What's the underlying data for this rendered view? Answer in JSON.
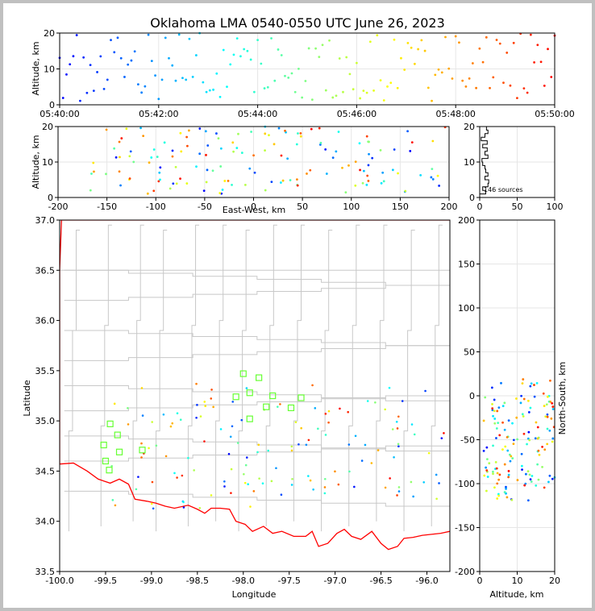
{
  "chart_data": {
    "type": "scatter",
    "title": "Oklahoma LMA 0540-0550 UTC June 26, 2023",
    "color_scale": [
      "#0000ff",
      "#00ffff",
      "#ffff00",
      "#ff0000"
    ],
    "panels": {
      "time_altitude": {
        "ylabel": "Altitude, km",
        "xlim": [
          "05:40:00",
          "05:50:00"
        ],
        "ylim": [
          0,
          20
        ],
        "xticks": [
          "05:40:00",
          "05:42:00",
          "05:44:00",
          "05:46:00",
          "05:48:00",
          "05:50:00"
        ],
        "yticks": [
          "0",
          "10",
          "20"
        ]
      },
      "ew_altitude": {
        "xlabel": "East-West, km",
        "ylabel": "Altitude, km",
        "xlim": [
          -200,
          200
        ],
        "ylim": [
          0,
          20
        ],
        "xticks": [
          "-200",
          "-150",
          "-100",
          "-50",
          "0",
          "50",
          "100",
          "150",
          "200"
        ],
        "yticks": [
          "0",
          "10",
          "20"
        ]
      },
      "histogram": {
        "xlim": [
          0,
          100
        ],
        "ylim": [
          0,
          20
        ],
        "xticks": [
          "0",
          "50",
          "100"
        ],
        "yticks": [
          "0",
          "10",
          "20"
        ],
        "annotation": "146 sources"
      },
      "plan_view": {
        "xlabel": "Longitude",
        "ylabel": "Latitude",
        "xlim": [
          -100.0,
          -95.75
        ],
        "ylim": [
          33.5,
          37.0
        ],
        "xticks": [
          "-100.0",
          "-99.5",
          "-99.0",
          "-98.5",
          "-98.0",
          "-97.5",
          "-97.0",
          "-96.5",
          "-96.0"
        ],
        "yticks": [
          "33.5",
          "34.0",
          "34.5",
          "35.0",
          "35.5",
          "36.0",
          "36.5",
          "37.0"
        ],
        "stations": [
          [
            -99.45,
            34.97
          ],
          [
            -99.37,
            34.86
          ],
          [
            -99.52,
            34.76
          ],
          [
            -99.35,
            34.69
          ],
          [
            -99.1,
            34.71
          ],
          [
            -99.5,
            34.6
          ],
          [
            -99.46,
            34.51
          ],
          [
            -98.08,
            35.24
          ],
          [
            -98.0,
            35.47
          ],
          [
            -97.93,
            35.28
          ],
          [
            -97.83,
            35.43
          ],
          [
            -97.68,
            35.25
          ],
          [
            -97.75,
            35.14
          ],
          [
            -97.93,
            35.02
          ],
          [
            -97.48,
            35.13
          ],
          [
            -97.37,
            35.23
          ]
        ]
      },
      "ns_altitude": {
        "xlabel": "Altitude, km",
        "ylabel": "North-South, km",
        "xlim": [
          0,
          20
        ],
        "ylim": [
          -200,
          200
        ],
        "xticks": [
          "0",
          "10",
          "20"
        ],
        "yticks": [
          "-200",
          "-150",
          "-100",
          "-50",
          "0",
          "50",
          "100",
          "150",
          "200"
        ]
      }
    },
    "source_count": 146
  }
}
